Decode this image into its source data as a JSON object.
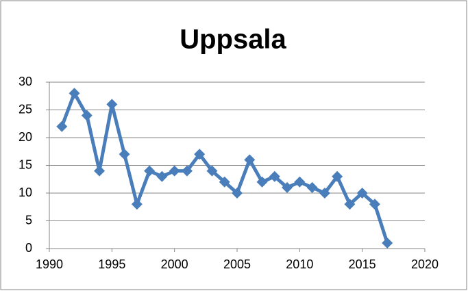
{
  "chart_data": {
    "type": "line",
    "title": "Uppsala",
    "x": [
      1991,
      1992,
      1993,
      1994,
      1995,
      1996,
      1997,
      1998,
      1999,
      2000,
      2001,
      2002,
      2003,
      2004,
      2005,
      2006,
      2007,
      2008,
      2009,
      2010,
      2011,
      2012,
      2013,
      2014,
      2015,
      2016,
      2017
    ],
    "series": [
      {
        "name": "Uppsala",
        "color": "#4a7ebb",
        "values": [
          22,
          28,
          24,
          14,
          26,
          17,
          8,
          14,
          13,
          14,
          14,
          17,
          14,
          12,
          10,
          16,
          12,
          13,
          11,
          12,
          11,
          10,
          13,
          8,
          10,
          8,
          1
        ]
      }
    ],
    "xlim": [
      1990,
      2020
    ],
    "xticks": [
      1990,
      1995,
      2000,
      2005,
      2010,
      2015,
      2020
    ],
    "ylim": [
      0,
      30
    ],
    "yticks": [
      0,
      5,
      10,
      15,
      20,
      25,
      30
    ],
    "grid": true
  }
}
